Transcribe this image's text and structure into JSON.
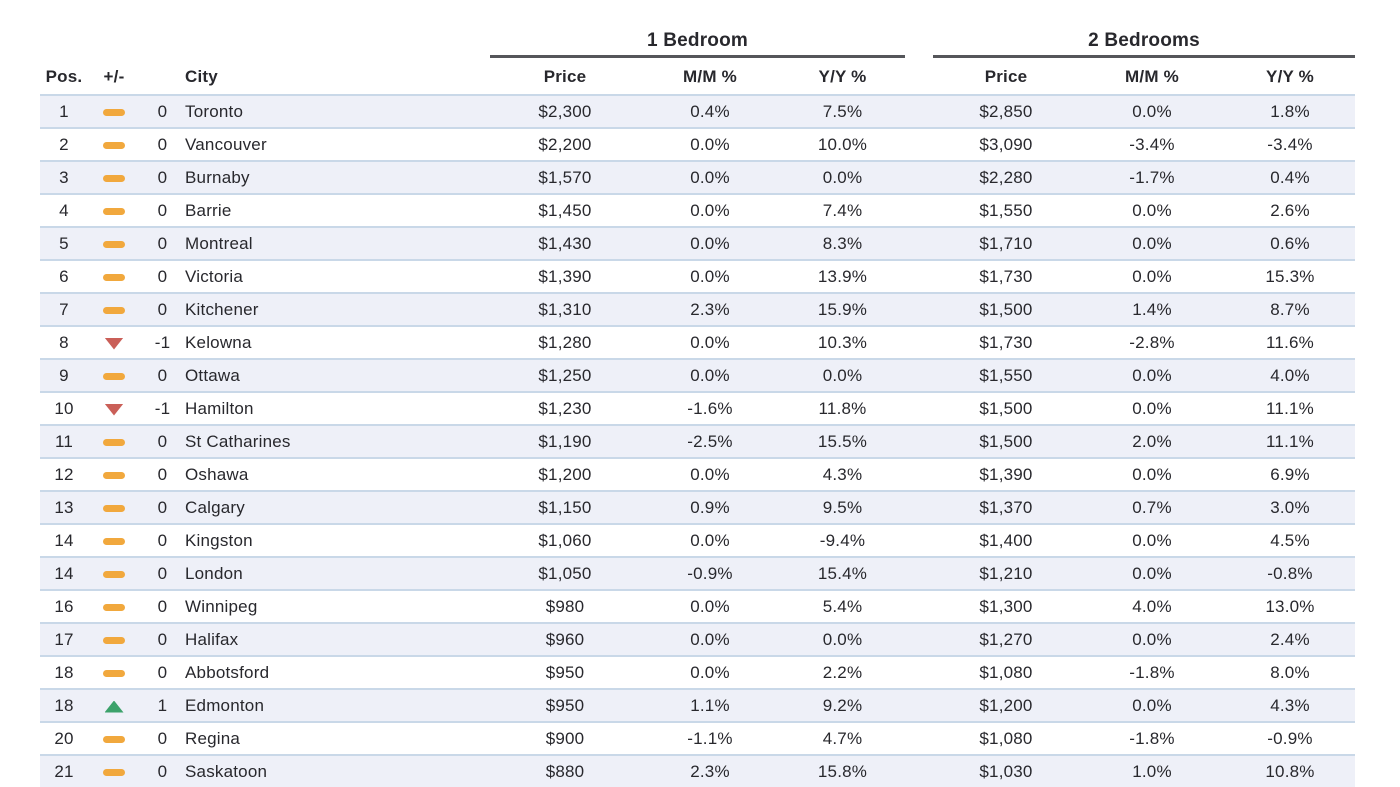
{
  "chart_data": {
    "type": "table",
    "groups": [
      {
        "label": "1 Bedroom"
      },
      {
        "label": "2 Bedrooms"
      }
    ],
    "headers": {
      "pos": "Pos.",
      "change": "+/-",
      "city": "City",
      "price": "Price",
      "mm": "M/M %",
      "yy": "Y/Y %"
    },
    "rows": [
      {
        "pos": "1",
        "trend": "flat",
        "change": "0",
        "city": "Toronto",
        "br1": {
          "price": "$2,300",
          "mm": "0.4%",
          "yy": "7.5%"
        },
        "br2": {
          "price": "$2,850",
          "mm": "0.0%",
          "yy": "1.8%"
        }
      },
      {
        "pos": "2",
        "trend": "flat",
        "change": "0",
        "city": "Vancouver",
        "br1": {
          "price": "$2,200",
          "mm": "0.0%",
          "yy": "10.0%"
        },
        "br2": {
          "price": "$3,090",
          "mm": "-3.4%",
          "yy": "-3.4%"
        }
      },
      {
        "pos": "3",
        "trend": "flat",
        "change": "0",
        "city": "Burnaby",
        "br1": {
          "price": "$1,570",
          "mm": "0.0%",
          "yy": "0.0%"
        },
        "br2": {
          "price": "$2,280",
          "mm": "-1.7%",
          "yy": "0.4%"
        }
      },
      {
        "pos": "4",
        "trend": "flat",
        "change": "0",
        "city": "Barrie",
        "br1": {
          "price": "$1,450",
          "mm": "0.0%",
          "yy": "7.4%"
        },
        "br2": {
          "price": "$1,550",
          "mm": "0.0%",
          "yy": "2.6%"
        }
      },
      {
        "pos": "5",
        "trend": "flat",
        "change": "0",
        "city": "Montreal",
        "br1": {
          "price": "$1,430",
          "mm": "0.0%",
          "yy": "8.3%"
        },
        "br2": {
          "price": "$1,710",
          "mm": "0.0%",
          "yy": "0.6%"
        }
      },
      {
        "pos": "6",
        "trend": "flat",
        "change": "0",
        "city": "Victoria",
        "br1": {
          "price": "$1,390",
          "mm": "0.0%",
          "yy": "13.9%"
        },
        "br2": {
          "price": "$1,730",
          "mm": "0.0%",
          "yy": "15.3%"
        }
      },
      {
        "pos": "7",
        "trend": "flat",
        "change": "0",
        "city": "Kitchener",
        "br1": {
          "price": "$1,310",
          "mm": "2.3%",
          "yy": "15.9%"
        },
        "br2": {
          "price": "$1,500",
          "mm": "1.4%",
          "yy": "8.7%"
        }
      },
      {
        "pos": "8",
        "trend": "down",
        "change": "-1",
        "city": "Kelowna",
        "br1": {
          "price": "$1,280",
          "mm": "0.0%",
          "yy": "10.3%"
        },
        "br2": {
          "price": "$1,730",
          "mm": "-2.8%",
          "yy": "11.6%"
        }
      },
      {
        "pos": "9",
        "trend": "flat",
        "change": "0",
        "city": "Ottawa",
        "br1": {
          "price": "$1,250",
          "mm": "0.0%",
          "yy": "0.0%"
        },
        "br2": {
          "price": "$1,550",
          "mm": "0.0%",
          "yy": "4.0%"
        }
      },
      {
        "pos": "10",
        "trend": "down",
        "change": "-1",
        "city": "Hamilton",
        "br1": {
          "price": "$1,230",
          "mm": "-1.6%",
          "yy": "11.8%"
        },
        "br2": {
          "price": "$1,500",
          "mm": "0.0%",
          "yy": "11.1%"
        }
      },
      {
        "pos": "11",
        "trend": "flat",
        "change": "0",
        "city": "St Catharines",
        "br1": {
          "price": "$1,190",
          "mm": "-2.5%",
          "yy": "15.5%"
        },
        "br2": {
          "price": "$1,500",
          "mm": "2.0%",
          "yy": "11.1%"
        }
      },
      {
        "pos": "12",
        "trend": "flat",
        "change": "0",
        "city": "Oshawa",
        "br1": {
          "price": "$1,200",
          "mm": "0.0%",
          "yy": "4.3%"
        },
        "br2": {
          "price": "$1,390",
          "mm": "0.0%",
          "yy": "6.9%"
        }
      },
      {
        "pos": "13",
        "trend": "flat",
        "change": "0",
        "city": "Calgary",
        "br1": {
          "price": "$1,150",
          "mm": "0.9%",
          "yy": "9.5%"
        },
        "br2": {
          "price": "$1,370",
          "mm": "0.7%",
          "yy": "3.0%"
        }
      },
      {
        "pos": "14",
        "trend": "flat",
        "change": "0",
        "city": "Kingston",
        "br1": {
          "price": "$1,060",
          "mm": "0.0%",
          "yy": "-9.4%"
        },
        "br2": {
          "price": "$1,400",
          "mm": "0.0%",
          "yy": "4.5%"
        }
      },
      {
        "pos": "14",
        "trend": "flat",
        "change": "0",
        "city": "London",
        "br1": {
          "price": "$1,050",
          "mm": "-0.9%",
          "yy": "15.4%"
        },
        "br2": {
          "price": "$1,210",
          "mm": "0.0%",
          "yy": "-0.8%"
        }
      },
      {
        "pos": "16",
        "trend": "flat",
        "change": "0",
        "city": "Winnipeg",
        "br1": {
          "price": "$980",
          "mm": "0.0%",
          "yy": "5.4%"
        },
        "br2": {
          "price": "$1,300",
          "mm": "4.0%",
          "yy": "13.0%"
        }
      },
      {
        "pos": "17",
        "trend": "flat",
        "change": "0",
        "city": "Halifax",
        "br1": {
          "price": "$960",
          "mm": "0.0%",
          "yy": "0.0%"
        },
        "br2": {
          "price": "$1,270",
          "mm": "0.0%",
          "yy": "2.4%"
        }
      },
      {
        "pos": "18",
        "trend": "flat",
        "change": "0",
        "city": "Abbotsford",
        "br1": {
          "price": "$950",
          "mm": "0.0%",
          "yy": "2.2%"
        },
        "br2": {
          "price": "$1,080",
          "mm": "-1.8%",
          "yy": "8.0%"
        }
      },
      {
        "pos": "18",
        "trend": "up",
        "change": "1",
        "city": "Edmonton",
        "br1": {
          "price": "$950",
          "mm": "1.1%",
          "yy": "9.2%"
        },
        "br2": {
          "price": "$1,200",
          "mm": "0.0%",
          "yy": "4.3%"
        }
      },
      {
        "pos": "20",
        "trend": "flat",
        "change": "0",
        "city": "Regina",
        "br1": {
          "price": "$900",
          "mm": "-1.1%",
          "yy": "4.7%"
        },
        "br2": {
          "price": "$1,080",
          "mm": "-1.8%",
          "yy": "-0.9%"
        }
      },
      {
        "pos": "21",
        "trend": "flat",
        "change": "0",
        "city": "Saskatoon",
        "br1": {
          "price": "$880",
          "mm": "2.3%",
          "yy": "15.8%"
        },
        "br2": {
          "price": "$1,030",
          "mm": "1.0%",
          "yy": "10.8%"
        }
      }
    ]
  },
  "icons": {
    "flat": "dash-icon",
    "down": "triangle-down-icon",
    "up": "triangle-up-icon"
  },
  "colors": {
    "text": "#28282d",
    "row_stripe": "#eef0f8",
    "separator": "#c9d8e8",
    "underline": "#55565a",
    "flat": "#f1a83d",
    "down": "#ca5f58",
    "up": "#3ca26b"
  }
}
